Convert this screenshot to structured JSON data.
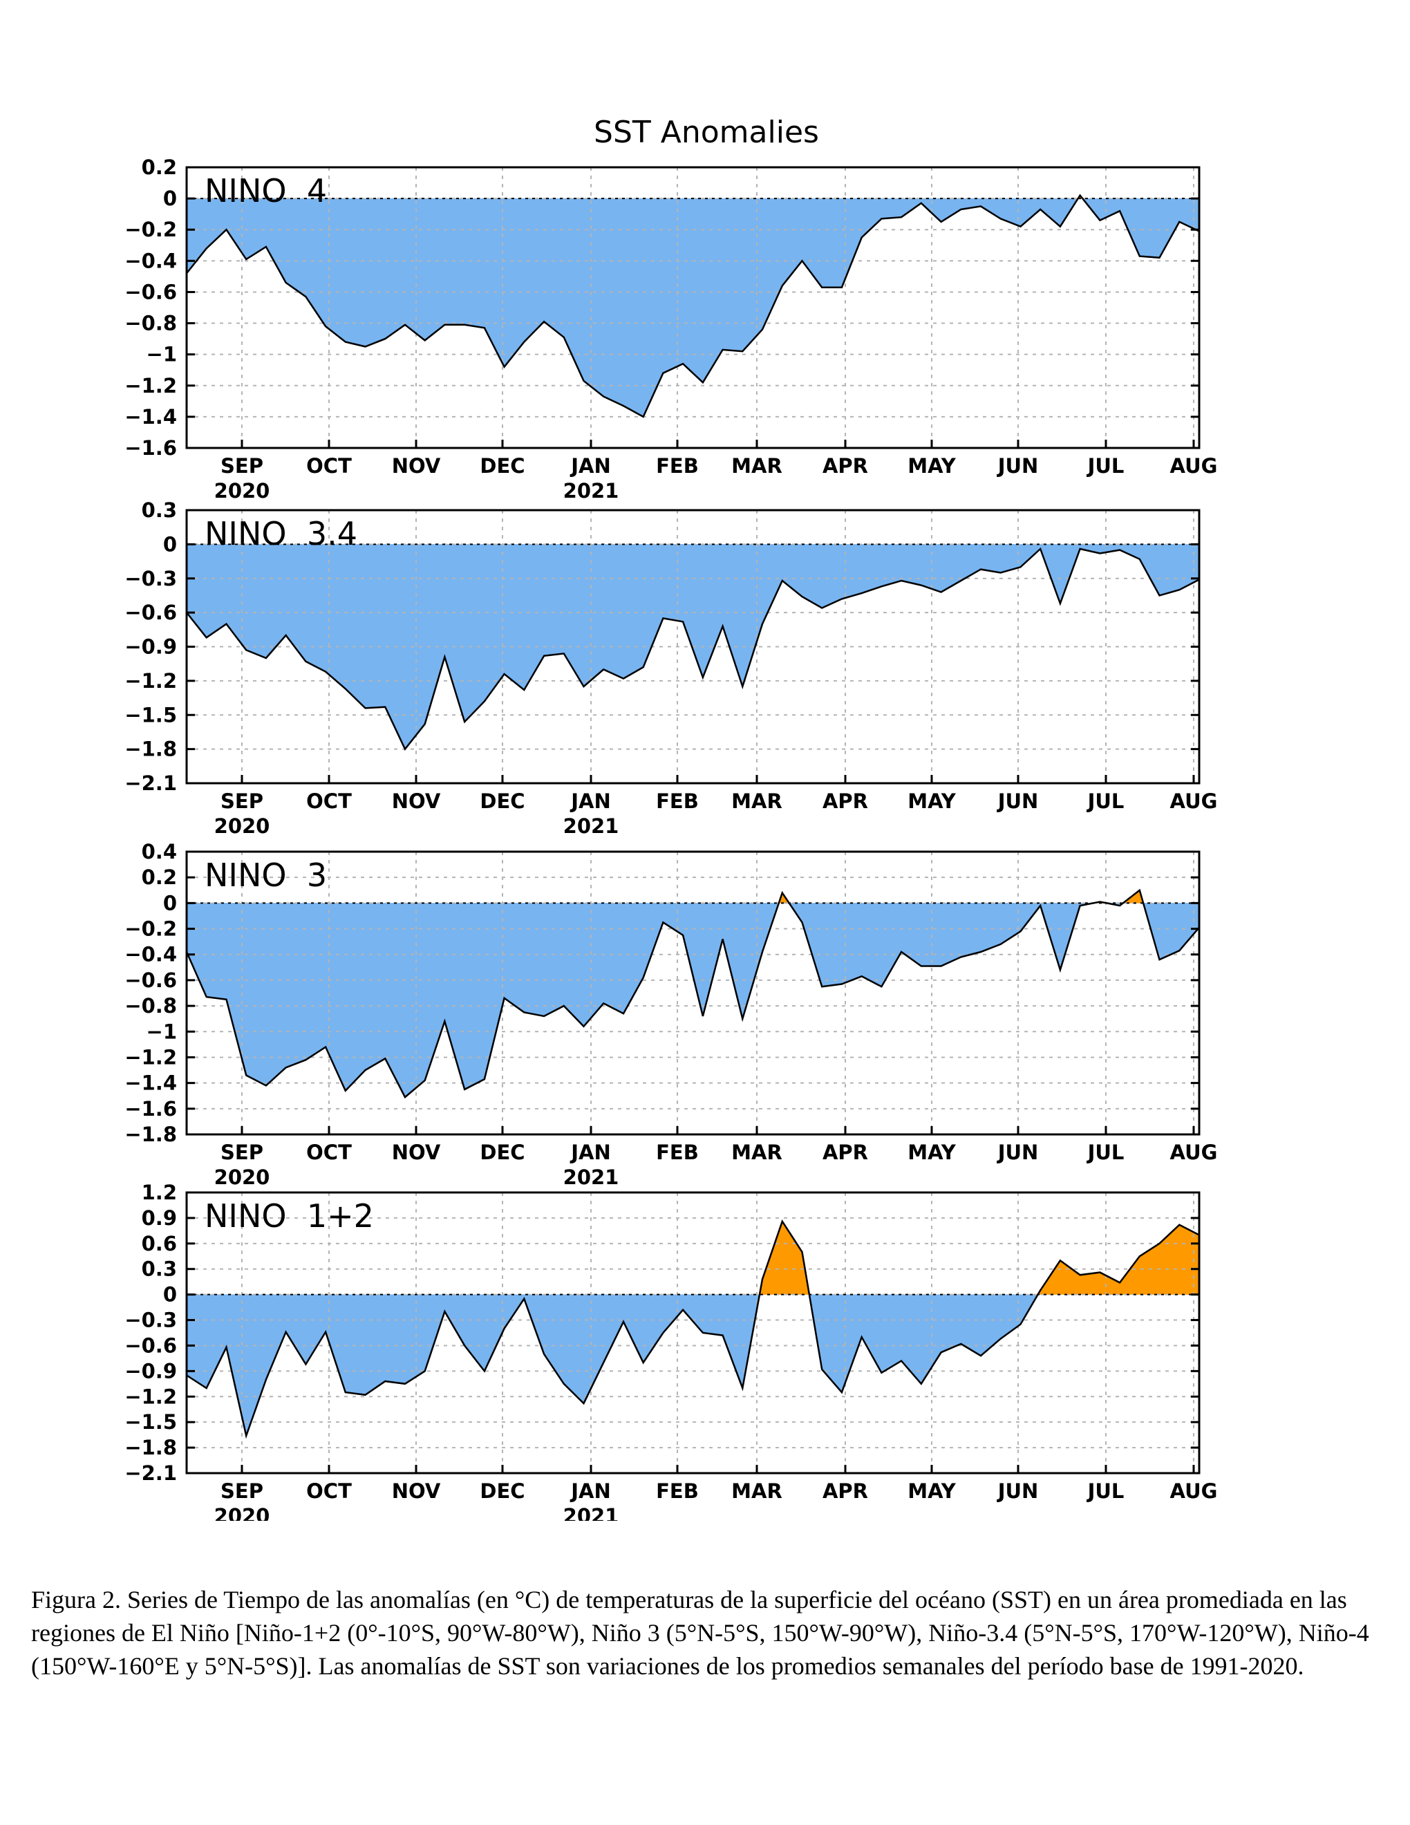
{
  "figure": {
    "title": "SST Anomalies",
    "caption": "Figura 2. Series de Tiempo de las anomalías (en °C) de temperaturas de la superficie del océano (SST) en un área promediada en las regiones de El Niño [Niño-1+2 (0°-10°S, 90°W-80°W), Niño 3 (5°N-5°S, 150°W-90°W), Niño-3.4 (5°N-5°S, 170°W-120°W), Niño-4 (150°W-160°E y 5°N-5°S)]. Las anomalías de SST son variaciones de los promedios semanales del período base de 1991-2020.",
    "colors": {
      "negative": "#78b4f0",
      "positive": "#ff9900",
      "line": "#000000",
      "grid": "#b4b4b4"
    }
  },
  "x_axis": {
    "month_labels": [
      "SEP",
      "OCT",
      "NOV",
      "DEC",
      "JAN",
      "FEB",
      "MAR",
      "APR",
      "MAY",
      "JUN",
      "JUL",
      "AUG"
    ],
    "year_labels": [
      {
        "month": "SEP",
        "year": "2020"
      },
      {
        "month": "JAN",
        "year": "2021"
      }
    ]
  },
  "chart_data": [
    {
      "type": "area",
      "name": "NINO 4",
      "ylim": [
        -1.6,
        0.2
      ],
      "yticks": [
        0.2,
        0,
        -0.2,
        -0.4,
        -0.6,
        -0.8,
        -1,
        -1.2,
        -1.4,
        -1.6
      ],
      "ytick_labels": [
        "0.2",
        "0",
        "−0.2",
        "−0.4",
        "−0.6",
        "−0.8",
        "−1",
        "−1.2",
        "−1.4",
        "−1.6"
      ],
      "values": [
        -0.48,
        -0.32,
        -0.2,
        -0.39,
        -0.31,
        -0.54,
        -0.63,
        -0.82,
        -0.92,
        -0.95,
        -0.9,
        -0.81,
        -0.91,
        -0.81,
        -0.81,
        -0.83,
        -1.08,
        -0.92,
        -0.79,
        -0.89,
        -1.17,
        -1.27,
        -1.33,
        -1.4,
        -1.12,
        -1.06,
        -1.18,
        -0.97,
        -0.98,
        -0.84,
        -0.56,
        -0.4,
        -0.57,
        -0.57,
        -0.25,
        -0.13,
        -0.12,
        -0.03,
        -0.15,
        -0.07,
        -0.05,
        -0.13,
        -0.18,
        -0.07,
        -0.18,
        0.02,
        -0.14,
        -0.08,
        -0.37,
        -0.38,
        -0.15,
        -0.21
      ]
    },
    {
      "type": "area",
      "name": "NINO 3.4",
      "ylim": [
        -2.1,
        0.3
      ],
      "yticks": [
        0.3,
        0,
        -0.3,
        -0.6,
        -0.9,
        -1.2,
        -1.5,
        -1.8,
        -2.1
      ],
      "ytick_labels": [
        "0.3",
        "0",
        "−0.3",
        "−0.6",
        "−0.9",
        "−1.2",
        "−1.5",
        "−1.8",
        "−2.1"
      ],
      "values": [
        -0.6,
        -0.82,
        -0.7,
        -0.93,
        -1.0,
        -0.8,
        -1.03,
        -1.12,
        -1.27,
        -1.44,
        -1.43,
        -1.8,
        -1.58,
        -0.99,
        -1.56,
        -1.38,
        -1.14,
        -1.28,
        -0.98,
        -0.96,
        -1.25,
        -1.1,
        -1.18,
        -1.08,
        -0.65,
        -0.68,
        -1.17,
        -0.72,
        -1.25,
        -0.7,
        -0.32,
        -0.46,
        -0.56,
        -0.48,
        -0.43,
        -0.37,
        -0.32,
        -0.36,
        -0.42,
        -0.32,
        -0.22,
        -0.25,
        -0.2,
        -0.04,
        -0.52,
        -0.04,
        -0.08,
        -0.05,
        -0.13,
        -0.45,
        -0.4,
        -0.31
      ]
    },
    {
      "type": "area",
      "name": "NINO 3",
      "ylim": [
        -1.8,
        0.4
      ],
      "yticks": [
        0.4,
        0.2,
        0,
        -0.2,
        -0.4,
        -0.6,
        -0.8,
        -1,
        -1.2,
        -1.4,
        -1.6,
        -1.8
      ],
      "ytick_labels": [
        "0.4",
        "0.2",
        "0",
        "−0.2",
        "−0.4",
        "−0.6",
        "−0.8",
        "−1",
        "−1.2",
        "−1.4",
        "−1.6",
        "−1.8"
      ],
      "values": [
        -0.38,
        -0.73,
        -0.75,
        -1.34,
        -1.42,
        -1.28,
        -1.22,
        -1.12,
        -1.46,
        -1.3,
        -1.21,
        -1.51,
        -1.38,
        -0.92,
        -1.45,
        -1.37,
        -0.74,
        -0.85,
        -0.88,
        -0.8,
        -0.96,
        -0.78,
        -0.86,
        -0.58,
        -0.15,
        -0.25,
        -0.88,
        -0.28,
        -0.9,
        -0.38,
        0.08,
        -0.15,
        -0.65,
        -0.63,
        -0.57,
        -0.65,
        -0.38,
        -0.49,
        -0.49,
        -0.42,
        -0.38,
        -0.32,
        -0.22,
        -0.02,
        -0.52,
        -0.02,
        0.01,
        -0.02,
        0.1,
        -0.44,
        -0.37,
        -0.19
      ]
    },
    {
      "type": "area",
      "name": "NINO 1+2",
      "ylim": [
        -2.1,
        1.2
      ],
      "yticks": [
        1.2,
        0.9,
        0.6,
        0.3,
        0,
        -0.3,
        -0.6,
        -0.9,
        -1.2,
        -1.5,
        -1.8,
        -2.1
      ],
      "ytick_labels": [
        "1.2",
        "0.9",
        "0.6",
        "0.3",
        "0",
        "−0.3",
        "−0.6",
        "−0.9",
        "−1.2",
        "−1.5",
        "−1.8",
        "−2.1"
      ],
      "values": [
        -0.95,
        -1.1,
        -0.62,
        -1.66,
        -1.0,
        -0.44,
        -0.82,
        -0.44,
        -1.15,
        -1.18,
        -1.02,
        -1.05,
        -0.9,
        -0.2,
        -0.6,
        -0.9,
        -0.4,
        -0.05,
        -0.7,
        -1.05,
        -1.28,
        -0.8,
        -0.32,
        -0.8,
        -0.45,
        -0.18,
        -0.45,
        -0.48,
        -1.1,
        0.18,
        0.86,
        0.5,
        -0.88,
        -1.15,
        -0.5,
        -0.92,
        -0.78,
        -1.05,
        -0.68,
        -0.58,
        -0.72,
        -0.52,
        -0.35,
        0.05,
        0.4,
        0.23,
        0.26,
        0.14,
        0.45,
        0.6,
        0.82,
        0.7
      ]
    }
  ]
}
